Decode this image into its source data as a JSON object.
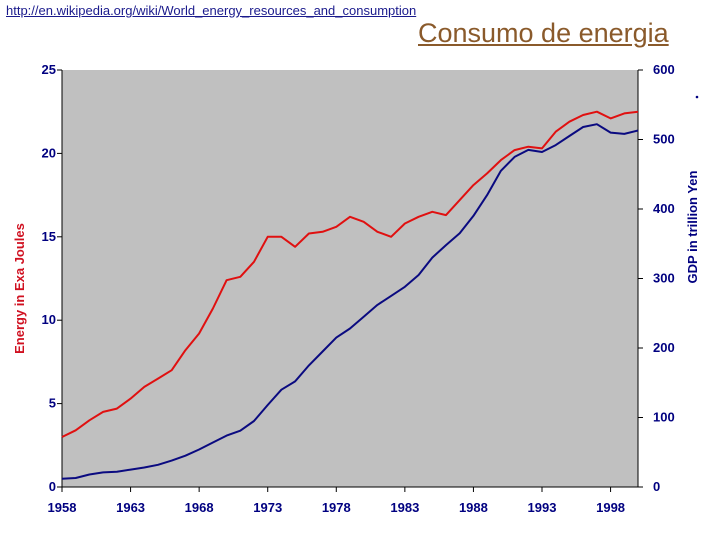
{
  "header": {
    "source_url": "http://en.wikipedia.org/wiki/World_energy_resources_and_consumption",
    "slide_title": "Consumo de energia"
  },
  "colors": {
    "plot_bg": "#c0c0c0",
    "energy_line": "#e01010",
    "gdp_line": "#0a0a80",
    "tick_text": "#000080",
    "left_title": "#d01020"
  },
  "chart_data": {
    "type": "line",
    "title": "",
    "xlabel": "",
    "x_ticks": [
      "1958",
      "1963",
      "1968",
      "1973",
      "1978",
      "1983",
      "1988",
      "1993",
      "1998"
    ],
    "xlim": [
      1958,
      2000
    ],
    "y_left": {
      "label": "Energy in Exa Joules",
      "ticks": [
        "0",
        "5",
        "10",
        "15",
        "20",
        "25"
      ],
      "lim": [
        0,
        25
      ]
    },
    "y_right": {
      "label": "GDP in trillion Yen",
      "ticks": [
        "0",
        "100",
        "200",
        "300",
        "400",
        "500",
        "600"
      ],
      "lim": [
        0,
        600
      ]
    },
    "grid": false,
    "legend": "none",
    "series": [
      {
        "name": "Energy (Exa Joules)",
        "axis": "left",
        "x": [
          1958,
          1959,
          1960,
          1961,
          1962,
          1963,
          1964,
          1965,
          1966,
          1967,
          1968,
          1969,
          1970,
          1971,
          1972,
          1973,
          1974,
          1975,
          1976,
          1977,
          1978,
          1979,
          1980,
          1981,
          1982,
          1983,
          1984,
          1985,
          1986,
          1987,
          1988,
          1989,
          1990,
          1991,
          1992,
          1993,
          1994,
          1995,
          1996,
          1997,
          1998,
          1999,
          2000
        ],
        "values": [
          3.0,
          3.4,
          4.0,
          4.5,
          4.7,
          5.3,
          6.0,
          6.5,
          7.0,
          8.2,
          9.2,
          10.7,
          12.4,
          12.6,
          13.5,
          15.0,
          15.0,
          14.4,
          15.2,
          15.3,
          15.6,
          16.2,
          15.9,
          15.3,
          15.0,
          15.8,
          16.2,
          16.5,
          16.3,
          17.2,
          18.1,
          18.8,
          19.6,
          20.2,
          20.4,
          20.3,
          21.3,
          21.9,
          22.3,
          22.5,
          22.1,
          22.4,
          22.5
        ]
      },
      {
        "name": "GDP (trillion Yen)",
        "axis": "right",
        "x": [
          1958,
          1959,
          1960,
          1961,
          1962,
          1963,
          1964,
          1965,
          1966,
          1967,
          1968,
          1969,
          1970,
          1971,
          1972,
          1973,
          1974,
          1975,
          1976,
          1977,
          1978,
          1979,
          1980,
          1981,
          1982,
          1983,
          1984,
          1985,
          1986,
          1987,
          1988,
          1989,
          1990,
          1991,
          1992,
          1993,
          1994,
          1995,
          1996,
          1997,
          1998,
          1999,
          2000
        ],
        "values": [
          12,
          13,
          18,
          21,
          22,
          25,
          28,
          32,
          38,
          45,
          54,
          64,
          74,
          81,
          95,
          118,
          140,
          152,
          175,
          195,
          215,
          228,
          245,
          262,
          275,
          288,
          305,
          330,
          348,
          365,
          390,
          420,
          455,
          475,
          485,
          482,
          492,
          505,
          518,
          522,
          510,
          508,
          513
        ]
      }
    ]
  }
}
